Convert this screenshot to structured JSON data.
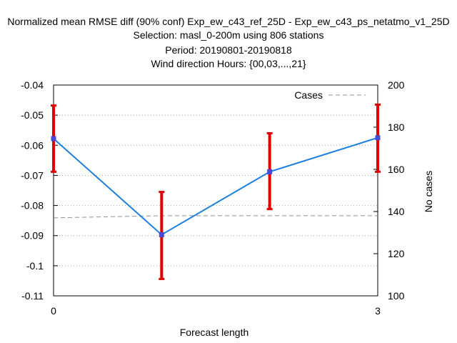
{
  "chart_data": {
    "type": "line",
    "title_lines": [
      "Normalized mean RMSE diff (90% conf) Exp_ew_c43_ref_25D - Exp_ew_c43_ps_netatmo_v1_25D",
      "Selection: masl_0-200m using    806 stations",
      "Period: 20190801-20190818",
      "Wind direction    Hours: {00,03,...,21}"
    ],
    "xlabel": "Forecast length",
    "ylabel": "",
    "y2label": "No cases",
    "x_ticks": [
      0,
      3
    ],
    "xlim": [
      0,
      3
    ],
    "ylim": [
      -0.11,
      -0.04
    ],
    "y_ticks": [
      -0.11,
      -0.1,
      -0.09,
      -0.08,
      -0.07,
      -0.06,
      -0.05,
      -0.04
    ],
    "y_tick_labels": [
      "-0.11",
      "-0.1",
      "-0.09",
      "-0.08",
      "-0.07",
      "-0.06",
      "-0.05",
      "-0.04"
    ],
    "y2lim": [
      100,
      200
    ],
    "y2_ticks": [
      100,
      120,
      140,
      160,
      180,
      200
    ],
    "grid": true,
    "legend_position": "top-right",
    "series": [
      {
        "name": "",
        "color": "#1a7fe0",
        "marker_color": "#4a4ad8",
        "x": [
          0,
          1,
          2,
          3
        ],
        "y": [
          -0.0578,
          -0.0897,
          -0.0688,
          -0.0575
        ],
        "err_low": [
          -0.0688,
          -0.1044,
          -0.0812,
          -0.0688
        ],
        "err_high": [
          -0.0468,
          -0.0755,
          -0.056,
          -0.0465
        ],
        "err_color": "#e00000"
      },
      {
        "name": "Cases",
        "axis": "y2",
        "style": "dashed",
        "color": "#909090",
        "x": [
          0,
          1,
          2,
          3
        ],
        "y": [
          137,
          138,
          138,
          138
        ]
      }
    ]
  }
}
